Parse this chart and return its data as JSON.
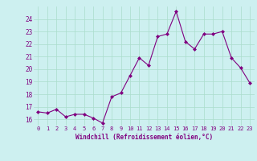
{
  "x": [
    0,
    1,
    2,
    3,
    4,
    5,
    6,
    7,
    8,
    9,
    10,
    11,
    12,
    13,
    14,
    15,
    16,
    17,
    18,
    19,
    20,
    21,
    22,
    23
  ],
  "y": [
    16.6,
    16.5,
    16.8,
    16.2,
    16.4,
    16.4,
    16.1,
    15.7,
    17.8,
    18.1,
    19.5,
    20.9,
    20.3,
    22.6,
    22.8,
    24.6,
    22.2,
    21.6,
    22.8,
    22.8,
    23.0,
    20.9,
    20.1,
    18.9
  ],
  "line_color": "#800080",
  "marker": "D",
  "marker_size": 2,
  "bg_color": "#cdf0f0",
  "grid_color": "#aaddcc",
  "xlabel": "Windchill (Refroidissement éolien,°C)",
  "xlabel_color": "#800080",
  "tick_color": "#800080",
  "ylim": [
    15.5,
    25.0
  ],
  "xlim": [
    -0.5,
    23.5
  ],
  "yticks": [
    16,
    17,
    18,
    19,
    20,
    21,
    22,
    23,
    24
  ],
  "xticks": [
    0,
    1,
    2,
    3,
    4,
    5,
    6,
    7,
    8,
    9,
    10,
    11,
    12,
    13,
    14,
    15,
    16,
    17,
    18,
    19,
    20,
    21,
    22,
    23
  ]
}
